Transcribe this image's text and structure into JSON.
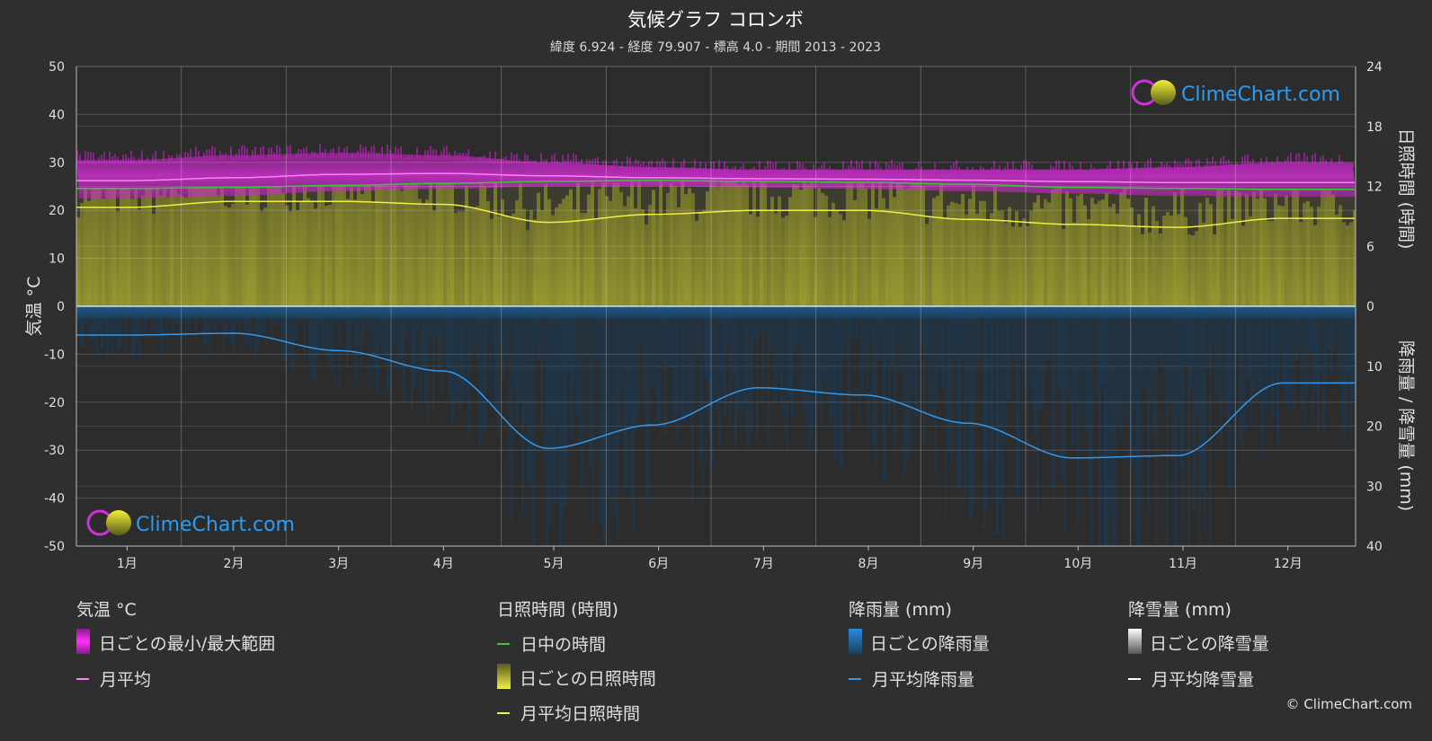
{
  "title": "気候グラフ コロンボ",
  "subtitle": "緯度 6.924 - 経度 79.907 - 標高 4.0 - 期間 2013 - 2023",
  "watermark": "ClimeChart.com",
  "copyright": "© ClimeChart.com",
  "legend": {
    "temperature": {
      "title": "気温 °C",
      "range_label": "日ごとの最小/最大範囲",
      "avg_label": "月平均"
    },
    "sunshine": {
      "title": "日照時間 (時間)",
      "daylight_label": "日中の時間",
      "daily_label": "日ごとの日照時間",
      "avg_label": "月平均日照時間"
    },
    "rain": {
      "title": "降雨量 (mm)",
      "daily_label": "日ごとの降雨量",
      "avg_label": "月平均降雨量"
    },
    "snow": {
      "title": "降雪量 (mm)",
      "daily_label": "日ごとの降雪量",
      "avg_label": "月平均降雪量"
    }
  },
  "colors": {
    "background": "#2f2f2f",
    "temp_range": "#d020d0",
    "temp_avg": "#ff80ff",
    "daylight": "#33cc33",
    "sunshine_bar": "#8c8c28",
    "sunshine_avg": "#f0f040",
    "rain_bar": "#1f5f8f",
    "rain_avg": "#3399ee",
    "snow": "#ffffff",
    "watermark": "#2a9df4"
  },
  "chart_data": {
    "type": "line",
    "categories": [
      "1月",
      "2月",
      "3月",
      "4月",
      "5月",
      "6月",
      "7月",
      "8月",
      "9月",
      "10月",
      "11月",
      "12月"
    ],
    "axes": {
      "left": {
        "label": "気温 °C",
        "ticks": [
          50,
          40,
          30,
          20,
          10,
          0,
          -10,
          -20,
          -30,
          -40,
          -50
        ],
        "range": [
          -50,
          50
        ]
      },
      "right_top": {
        "label": "日照時間 (時間)",
        "ticks": [
          24,
          18,
          12,
          6,
          0
        ],
        "range": [
          0,
          24
        ]
      },
      "right_bottom": {
        "label": "降雨量 / 降雪量 (mm)",
        "ticks": [
          0,
          10,
          20,
          30,
          40
        ],
        "range": [
          0,
          40
        ]
      }
    },
    "grid": true,
    "series": [
      {
        "name": "月平均",
        "unit": "°C",
        "values": [
          26.2,
          26.8,
          27.5,
          27.7,
          27.2,
          26.8,
          26.6,
          26.5,
          26.3,
          26.0,
          25.8,
          25.8
        ]
      },
      {
        "name": "日ごとの最小/最大範囲 (最大)",
        "unit": "°C",
        "values": [
          30.5,
          31.5,
          32.0,
          31.5,
          30.0,
          29.0,
          28.5,
          28.5,
          28.5,
          28.5,
          29.0,
          30.0
        ]
      },
      {
        "name": "日ごとの最小/最大範囲 (最小)",
        "unit": "°C",
        "values": [
          22.5,
          23.0,
          24.0,
          24.5,
          25.0,
          25.0,
          24.8,
          24.5,
          24.0,
          23.5,
          23.0,
          22.8
        ]
      },
      {
        "name": "日中の時間",
        "unit": "時間",
        "values": [
          11.8,
          11.9,
          12.1,
          12.3,
          12.5,
          12.6,
          12.5,
          12.4,
          12.2,
          11.9,
          11.8,
          11.7
        ]
      },
      {
        "name": "月平均日照時間",
        "unit": "時間",
        "values": [
          9.9,
          10.5,
          10.5,
          10.2,
          8.4,
          9.2,
          9.6,
          9.6,
          8.7,
          8.2,
          7.9,
          8.8
        ]
      },
      {
        "name": "月平均降雨量",
        "unit": "mm",
        "values": [
          4.8,
          4.5,
          7.4,
          10.8,
          23.7,
          19.8,
          13.6,
          14.8,
          19.5,
          25.3,
          24.9,
          12.8
        ]
      },
      {
        "name": "月平均降雪量",
        "unit": "mm",
        "values": [
          0,
          0,
          0,
          0,
          0,
          0,
          0,
          0,
          0,
          0,
          0,
          0
        ]
      }
    ]
  }
}
